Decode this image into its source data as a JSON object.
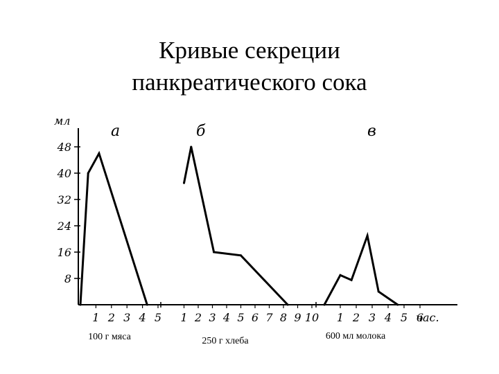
{
  "title": {
    "line1": "Кривые секреции",
    "line2": "панкреатического сока"
  },
  "chart_data": {
    "type": "line",
    "ylabel": "мл",
    "yticks": [
      "8",
      "16",
      "24",
      "32",
      "40",
      "48"
    ],
    "ylim": [
      0,
      48
    ],
    "xunit": "час.",
    "grid": false,
    "series": [
      {
        "name": "а",
        "caption": "100 г мяса",
        "xticks": [
          "1",
          "2",
          "3",
          "4",
          "5"
        ],
        "points": [
          [
            0,
            0
          ],
          [
            0.5,
            40
          ],
          [
            1.2,
            46
          ],
          [
            4.3,
            0
          ]
        ]
      },
      {
        "name": "б",
        "caption": "250 г хлеба",
        "xticks": [
          "1",
          "2",
          "3",
          "4",
          "5",
          "6",
          "7",
          "8",
          "9",
          "10"
        ],
        "points": [
          [
            1,
            37
          ],
          [
            1.5,
            48
          ],
          [
            3.1,
            16
          ],
          [
            5,
            15
          ],
          [
            8.3,
            0
          ]
        ]
      },
      {
        "name": "в",
        "caption": "600 мл молока",
        "xticks": [
          "1",
          "2",
          "3",
          "4",
          "5",
          "6"
        ],
        "points": [
          [
            0,
            0
          ],
          [
            1.0,
            9
          ],
          [
            1.7,
            7.5
          ],
          [
            2.7,
            21
          ],
          [
            3.4,
            4
          ],
          [
            4.6,
            0
          ]
        ]
      }
    ]
  }
}
